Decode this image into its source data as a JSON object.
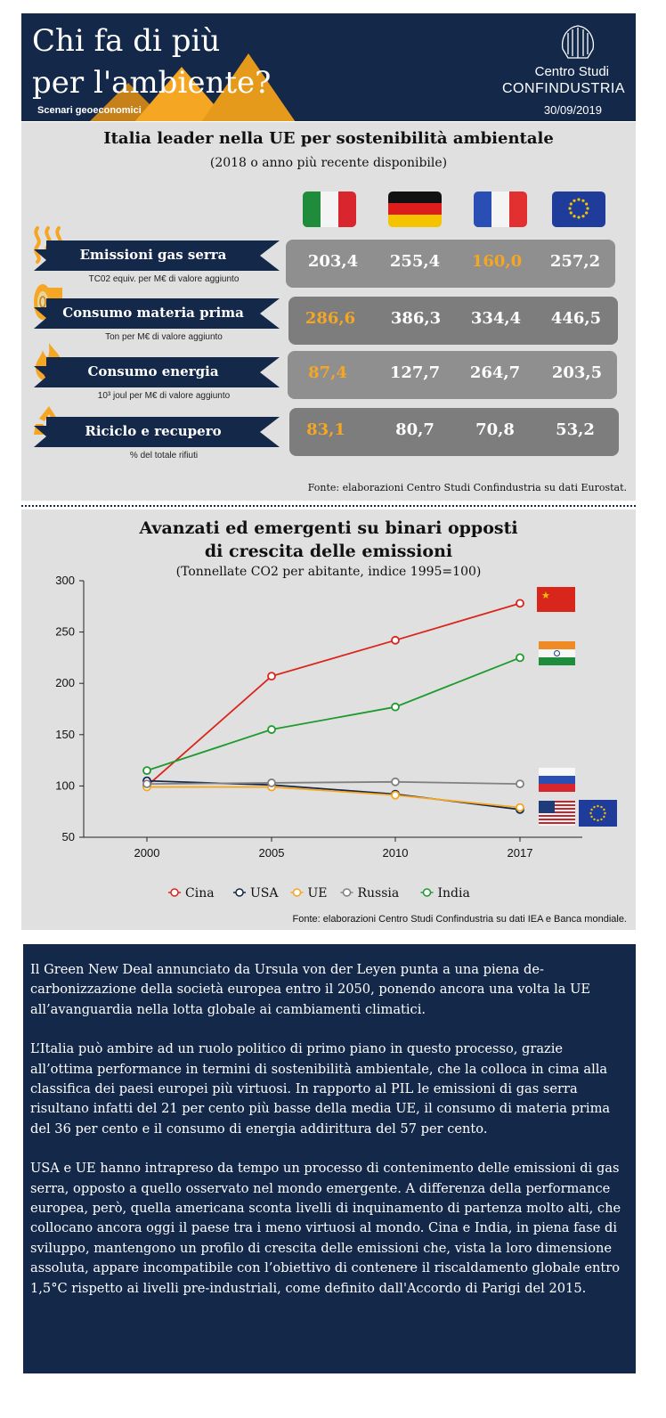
{
  "header": {
    "title_line1": "Chi fa di più",
    "title_line2": "per l'ambiente?",
    "subtitle": "Scenari geoeconomici",
    "brand_line1": "Centro Studi",
    "brand_line2": "CONFINDUSTRIA",
    "date": "30/09/2019"
  },
  "section1": {
    "title": "Italia leader nella UE per sostenibilità ambientale",
    "subtitle": "(2018 o anno più recente disponibile)",
    "countries": [
      "Italia",
      "Germania",
      "Francia",
      "UE"
    ],
    "rows": [
      {
        "label": "Emissioni gas serra",
        "unit": "TC02 equiv. per M€ di valore aggiunto",
        "icon": "heat-waves-icon",
        "values": [
          "203,4",
          "255,4",
          "160,0",
          "257,2"
        ],
        "highlight": 2
      },
      {
        "label": "Consumo materia prima",
        "unit": "Ton per M€ di valore aggiunto",
        "icon": "log-icon",
        "values": [
          "286,6",
          "386,3",
          "334,4",
          "446,5"
        ],
        "highlight": 0
      },
      {
        "label": "Consumo energia",
        "unit": "10³ joul per M€ di valore aggiunto",
        "icon": "flame-icon",
        "values": [
          "87,4",
          "127,7",
          "264,7",
          "203,5"
        ],
        "highlight": 0
      },
      {
        "label": "Riciclo e recupero",
        "unit": "% del totale rifiuti",
        "icon": "recycle-icon",
        "values": [
          "83,1",
          "80,7",
          "70,8",
          "53,2"
        ],
        "highlight": 0
      }
    ],
    "source": "Fonte: elaborazioni Centro Studi Confindustria su dati Eurostat."
  },
  "section2": {
    "title_line1": "Avanzati ed emergenti su binari opposti",
    "title_line2": "di crescita delle emissioni",
    "subtitle": "(Tonnellate CO2 per abitante, indice 1995=100)",
    "source": "Fonte: elaborazioni Centro Studi Confindustria su dati IEA e Banca mondiale."
  },
  "chart_data": {
    "type": "line",
    "x": [
      "2000",
      "2005",
      "2010",
      "2017"
    ],
    "ylim": [
      50,
      300
    ],
    "yticks": [
      50,
      100,
      150,
      200,
      250,
      300
    ],
    "legend_position": "bottom",
    "series": [
      {
        "name": "Cina",
        "color": "#d9261c",
        "values": [
          100,
          207,
          242,
          278
        ]
      },
      {
        "name": "USA",
        "color": "#14284a",
        "values": [
          105,
          101,
          92,
          77
        ]
      },
      {
        "name": "UE",
        "color": "#f5a623",
        "values": [
          99,
          99,
          91,
          79
        ]
      },
      {
        "name": "Russia",
        "color": "#808080",
        "values": [
          102,
          103,
          104,
          102
        ]
      },
      {
        "name": "India",
        "color": "#1f9a2e",
        "values": [
          115,
          155,
          177,
          225
        ]
      }
    ]
  },
  "section3": {
    "paragraphs": [
      "Il Green New Deal annunciato da Ursula von der Leyen punta a una piena de-carbonizzazione della società europea entro il 2050, ponendo ancora una volta la UE all’avanguardia nella lotta globale ai cambiamenti climatici.",
      "L’Italia può ambire ad un ruolo politico di primo piano in questo processo, grazie all’ottima performance in termini di sostenibilità ambientale, che la colloca in cima alla classifica dei paesi europei più virtuosi. In rapporto al PIL le emissioni di gas serra risultano infatti del 21 per cento più basse della media UE, il consumo di materia prima del 36 per cento e il consumo di energia addirittura del 57 per cento.",
      "USA e UE hanno intrapreso da tempo un processo di contenimento delle emissioni di gas serra, opposto a quello osservato nel mondo emergente. A differenza della performance europea, però, quella americana sconta livelli di inquinamento di partenza molto alti, che collocano ancora oggi il paese tra i meno virtuosi al mondo. Cina e India, in piena fase di sviluppo, mantengono un profilo di crescita delle emissioni che, vista la loro dimensione assoluta, appare incompatibile con l’obiettivo di contenere il riscaldamento globale entro 1,5°C rispetto ai livelli pre-industriali, come definito dall'Accordo di Parigi del 2015."
    ]
  },
  "colors": {
    "navy": "#14284a",
    "orange": "#f5a623",
    "panel_gray": "#e0e0e0",
    "value_box": "#8f8f8f"
  }
}
